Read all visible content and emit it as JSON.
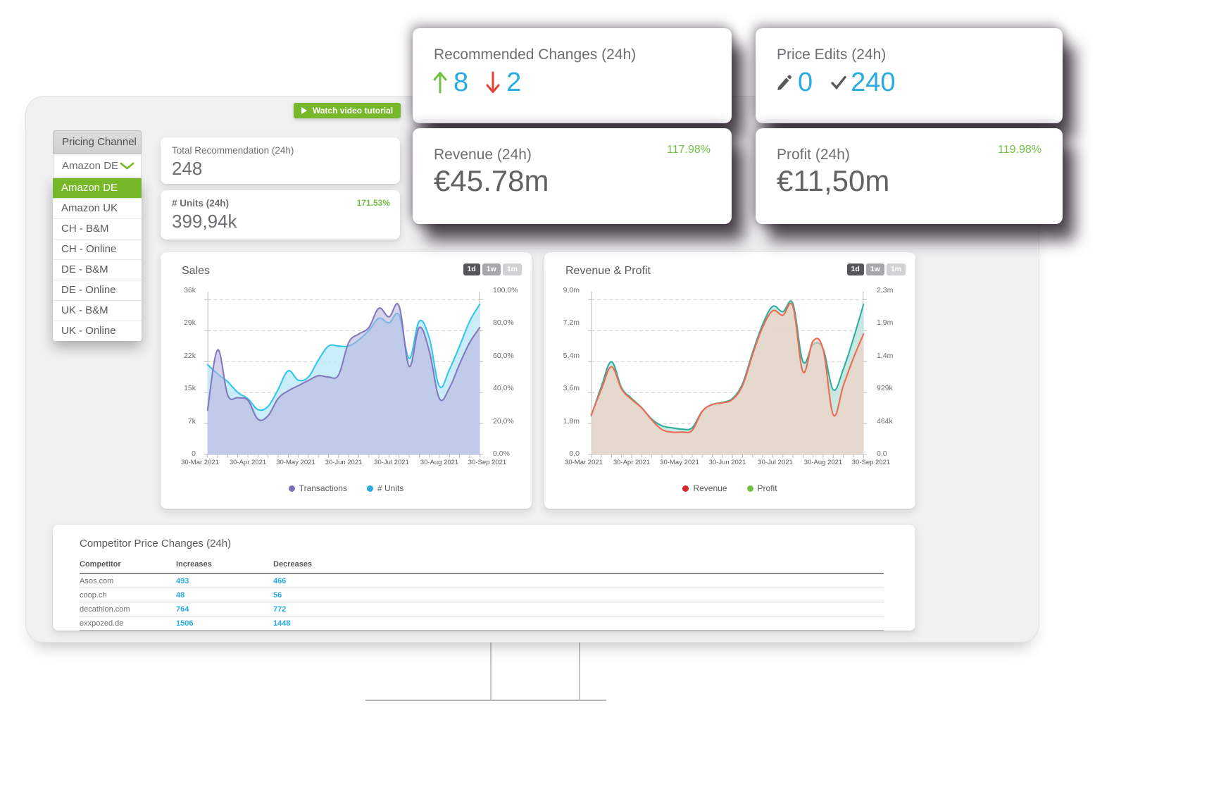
{
  "colors": {
    "accent_green": "#76b82a",
    "delta_green": "#72bf44",
    "value_blue": "#29abe2",
    "down_red": "#e04438",
    "text_gray": "#6d6e71",
    "text_dark": "#58595b"
  },
  "tutorial_button": {
    "label": "Watch video tutorial"
  },
  "pricing_channel": {
    "header": "Pricing Channel",
    "selected": "Amazon DE",
    "options": [
      "Amazon DE",
      "Amazon UK",
      "CH - B&M",
      "CH - Online",
      "DE - B&M",
      "DE - Online",
      "UK - B&M",
      "UK - Online"
    ]
  },
  "cards": {
    "total_recommendation": {
      "title": "Total Recommendation (24h)",
      "value": "248"
    },
    "units": {
      "title": "# Units (24h)",
      "value": "399,94k",
      "delta": "171.53%"
    },
    "recommended_changes": {
      "title": "Recommended Changes (24h)",
      "up_value": "8",
      "down_value": "2"
    },
    "price_edits": {
      "title": "Price Edits (24h)",
      "draft_value": "0",
      "applied_value": "240"
    },
    "revenue": {
      "title": "Revenue (24h)",
      "value": "€45.78m",
      "delta": "117.98%"
    },
    "profit": {
      "title": "Profit (24h)",
      "value": "€11,50m",
      "delta": "119.98%"
    }
  },
  "chart_data": [
    {
      "type": "area",
      "title": "Sales",
      "ranges": [
        "1d",
        "1w",
        "1m"
      ],
      "selected_range": "1d",
      "x_labels": [
        "30-Mar 2021",
        "30-Apr 2021",
        "30-May 2021",
        "30-Jun 2021",
        "30-Jul 2021",
        "30-Aug 2021",
        "30-Sep 2021"
      ],
      "left_ticks": [
        "36k",
        "29k",
        "22k",
        "15k",
        "7k",
        "0"
      ],
      "right_ticks": [
        "100,0%",
        "80,0%",
        "60,0%",
        "40,0%",
        "20,0%",
        "0.0%"
      ],
      "left_max": 36,
      "right_max": 100,
      "grid": true,
      "legend_position": "bottom",
      "series": [
        {
          "name": "Transactions",
          "axis": "left",
          "line": "#8478bf",
          "fill": "#b7aedb",
          "fill_opacity": 0.55,
          "dot": "#7a6fb8",
          "values": [
            10.3,
            24.3,
            13.8,
            13.2,
            12.6,
            8.2,
            9.0,
            13.0,
            14.8,
            16.0,
            17.2,
            18.3,
            18.0,
            18.5,
            26.0,
            28.0,
            29.5,
            34.0,
            32.0,
            34.5,
            20.5,
            29.5,
            24.0,
            13.0,
            15.5,
            21.0,
            26.0,
            29.5
          ]
        },
        {
          "name": "# Units",
          "axis": "right",
          "line": "#35c4f0",
          "fill": "#bce8f8",
          "fill_opacity": 0.8,
          "dot": "#29abe2",
          "values": [
            58,
            52,
            47,
            40,
            36,
            29,
            31,
            42,
            54,
            48,
            50,
            61,
            70,
            70,
            70,
            74,
            80,
            88,
            85,
            90,
            62,
            86,
            75,
            44,
            55,
            70,
            86,
            97
          ]
        }
      ]
    },
    {
      "type": "area",
      "title": "Revenue & Profit",
      "ranges": [
        "1d",
        "1w",
        "1m"
      ],
      "selected_range": "1d",
      "x_labels": [
        "30-Mar 2021",
        "30-Apr 2021",
        "30-May 2021",
        "30-Jun 2021",
        "30-Jul 2021",
        "30-Aug 2021",
        "30-Sep 2021"
      ],
      "left_ticks": [
        "9,0m",
        "7,2m",
        "5,4m",
        "3,6m",
        "1,8m",
        "0,0"
      ],
      "right_ticks": [
        "2,3m",
        "1,9m",
        "1,4m",
        "929k",
        "464k",
        "0,0"
      ],
      "left_max": 9,
      "right_max": 2.321,
      "grid": true,
      "legend_position": "bottom",
      "series": [
        {
          "name": "Revenue",
          "axis": "left",
          "line": "#ee6a52",
          "fill": "#f8cfc0",
          "fill_opacity": 0.6,
          "dot": "#d7282f",
          "values": [
            2.3,
            3.8,
            5.1,
            3.8,
            3.2,
            2.7,
            2.0,
            1.45,
            1.3,
            1.3,
            1.4,
            2.5,
            2.9,
            3.0,
            3.2,
            4.0,
            5.8,
            7.4,
            8.35,
            8.1,
            8.6,
            4.8,
            6.6,
            6.1,
            2.3,
            4.0,
            5.6,
            7.0
          ]
        },
        {
          "name": "Profit",
          "axis": "right",
          "line": "#2fae9f",
          "fill": "#bfe4dd",
          "fill_opacity": 0.85,
          "dot": "#72bf44",
          "values": [
            0.58,
            1.02,
            1.39,
            1.0,
            0.84,
            0.7,
            0.53,
            0.43,
            0.4,
            0.38,
            0.4,
            0.65,
            0.75,
            0.78,
            0.84,
            1.06,
            1.53,
            1.95,
            2.22,
            2.14,
            2.26,
            1.39,
            1.65,
            1.58,
            0.97,
            1.28,
            1.74,
            2.25
          ]
        }
      ]
    }
  ],
  "competitor_table": {
    "title": "Competitor Price Changes (24h)",
    "columns": [
      "Competitor",
      "Increases",
      "Decreases"
    ],
    "rows": [
      [
        "Asos.com",
        "493",
        "466"
      ],
      [
        "coop.ch",
        "48",
        "56"
      ],
      [
        "decathlon.com",
        "764",
        "772"
      ],
      [
        "exxpozed.de",
        "1506",
        "1448"
      ]
    ]
  }
}
